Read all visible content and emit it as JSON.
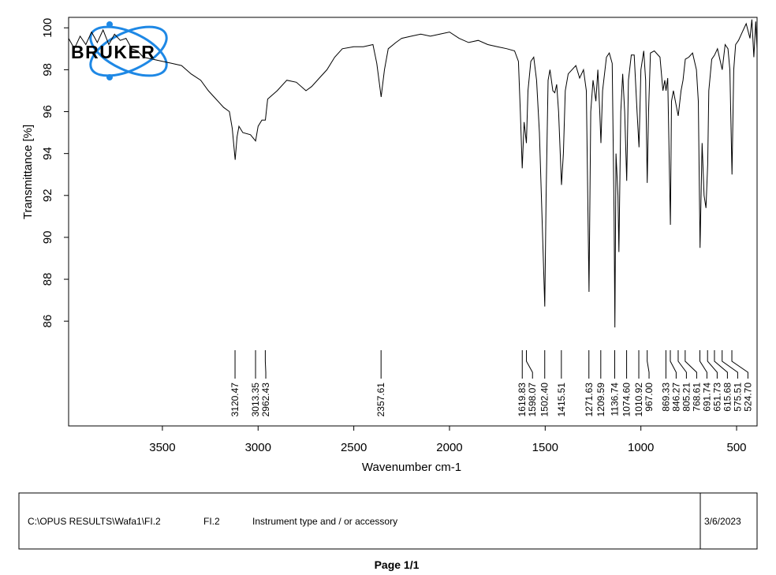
{
  "chart_data": {
    "type": "line",
    "color": "#000000",
    "xlabel": "Wavenumber cm-1",
    "ylabel": "Transmittance [%]",
    "xlim": [
      3990,
      393
    ],
    "ylim": [
      81,
      100.5
    ],
    "xticks": [
      3500,
      3000,
      2500,
      2000,
      1500,
      1000,
      500
    ],
    "yticks": [
      86,
      88,
      90,
      92,
      94,
      96,
      98,
      100
    ],
    "x": [
      3990,
      3960,
      3930,
      3900,
      3870,
      3840,
      3810,
      3780,
      3750,
      3720,
      3690,
      3660,
      3630,
      3600,
      3550,
      3500,
      3450,
      3400,
      3350,
      3300,
      3260,
      3220,
      3180,
      3150,
      3135,
      3120,
      3110,
      3100,
      3080,
      3040,
      3013,
      3000,
      2980,
      2962,
      2950,
      2900,
      2850,
      2800,
      2750,
      2720,
      2680,
      2640,
      2600,
      2560,
      2500,
      2450,
      2400,
      2380,
      2357,
      2340,
      2320,
      2280,
      2250,
      2200,
      2150,
      2100,
      2050,
      2000,
      1950,
      1900,
      1850,
      1800,
      1750,
      1700,
      1660,
      1640,
      1630,
      1620,
      1610,
      1598,
      1590,
      1575,
      1560,
      1545,
      1530,
      1515,
      1502,
      1495,
      1485,
      1475,
      1460,
      1450,
      1440,
      1430,
      1415,
      1405,
      1395,
      1380,
      1360,
      1340,
      1320,
      1300,
      1285,
      1271,
      1262,
      1250,
      1235,
      1225,
      1215,
      1209,
      1200,
      1180,
      1165,
      1150,
      1140,
      1136,
      1130,
      1120,
      1115,
      1105,
      1095,
      1085,
      1074,
      1065,
      1050,
      1035,
      1020,
      1010,
      1000,
      985,
      975,
      967,
      960,
      950,
      930,
      900,
      885,
      875,
      869,
      860,
      846,
      840,
      830,
      820,
      805,
      790,
      780,
      768,
      750,
      730,
      710,
      700,
      691,
      680,
      670,
      660,
      651,
      645,
      630,
      615,
      600,
      590,
      575,
      560,
      545,
      535,
      524,
      515,
      505,
      490,
      470,
      450,
      430,
      420,
      410,
      400,
      393
    ],
    "values": [
      99.5,
      99.0,
      99.6,
      99.2,
      99.8,
      99.3,
      99.9,
      99.2,
      99.7,
      99.4,
      99.5,
      99.0,
      98.9,
      98.6,
      98.5,
      98.4,
      98.3,
      98.2,
      97.8,
      97.5,
      97.0,
      96.6,
      96.2,
      96.0,
      95.2,
      93.7,
      94.8,
      95.3,
      95.0,
      94.9,
      94.6,
      95.3,
      95.6,
      95.6,
      96.6,
      97.0,
      97.5,
      97.4,
      97.0,
      97.2,
      97.6,
      98.0,
      98.6,
      99.0,
      99.1,
      99.1,
      99.2,
      98.3,
      96.7,
      98.0,
      99.0,
      99.3,
      99.5,
      99.6,
      99.7,
      99.6,
      99.7,
      99.8,
      99.5,
      99.3,
      99.4,
      99.2,
      99.1,
      99.0,
      98.9,
      98.4,
      96.0,
      93.3,
      95.5,
      94.5,
      97.0,
      98.4,
      98.6,
      97.5,
      95.0,
      90.5,
      86.7,
      92.0,
      97.5,
      98.0,
      97.0,
      96.9,
      97.3,
      96.0,
      92.5,
      94.0,
      97.0,
      97.8,
      98.0,
      98.2,
      97.6,
      98.0,
      97.0,
      87.4,
      96.0,
      97.5,
      96.5,
      98.0,
      96.0,
      94.5,
      97.0,
      98.6,
      98.8,
      98.3,
      91.0,
      85.7,
      94.0,
      92.0,
      89.3,
      96.0,
      97.8,
      96.0,
      92.7,
      97.5,
      98.7,
      98.7,
      96.0,
      94.3,
      98.0,
      98.9,
      97.5,
      92.6,
      96.0,
      98.8,
      98.9,
      98.6,
      97.0,
      97.5,
      97.0,
      97.6,
      90.6,
      96.5,
      97.0,
      96.5,
      95.8,
      97.0,
      97.5,
      98.5,
      98.6,
      98.8,
      98.0,
      96.5,
      89.5,
      94.5,
      92.0,
      91.4,
      93.5,
      97.0,
      98.5,
      98.7,
      99.0,
      98.6,
      98.0,
      99.2,
      99.0,
      98.0,
      93.0,
      98.0,
      99.2,
      99.4,
      99.8,
      100.2,
      99.5,
      100.4,
      98.6,
      100.3,
      99.0
    ],
    "peaks": [
      3120.47,
      3013.35,
      2962.43,
      2357.61,
      1619.83,
      1598.07,
      {
        "value": 1502.4,
        "label": "1502.40"
      },
      1415.51,
      1271.63,
      1209.59,
      1136.74,
      {
        "value": 1074.6,
        "label": "1074.60"
      },
      1010.92,
      {
        "value": 967,
        "label": "967.00"
      },
      869.33,
      846.27,
      805.21,
      768.61,
      691.74,
      651.73,
      615.68,
      575.51,
      {
        "value": 524.7,
        "label": "524.70"
      }
    ]
  },
  "logo": {
    "text": "BRUKER"
  },
  "footer": {
    "path": "C:\\OPUS RESULTS\\Wafa1\\FI.2",
    "sample": "FI.2",
    "instrument": "Instrument type and / or accessory",
    "date": "3/6/2023"
  },
  "page": "Page 1/1"
}
